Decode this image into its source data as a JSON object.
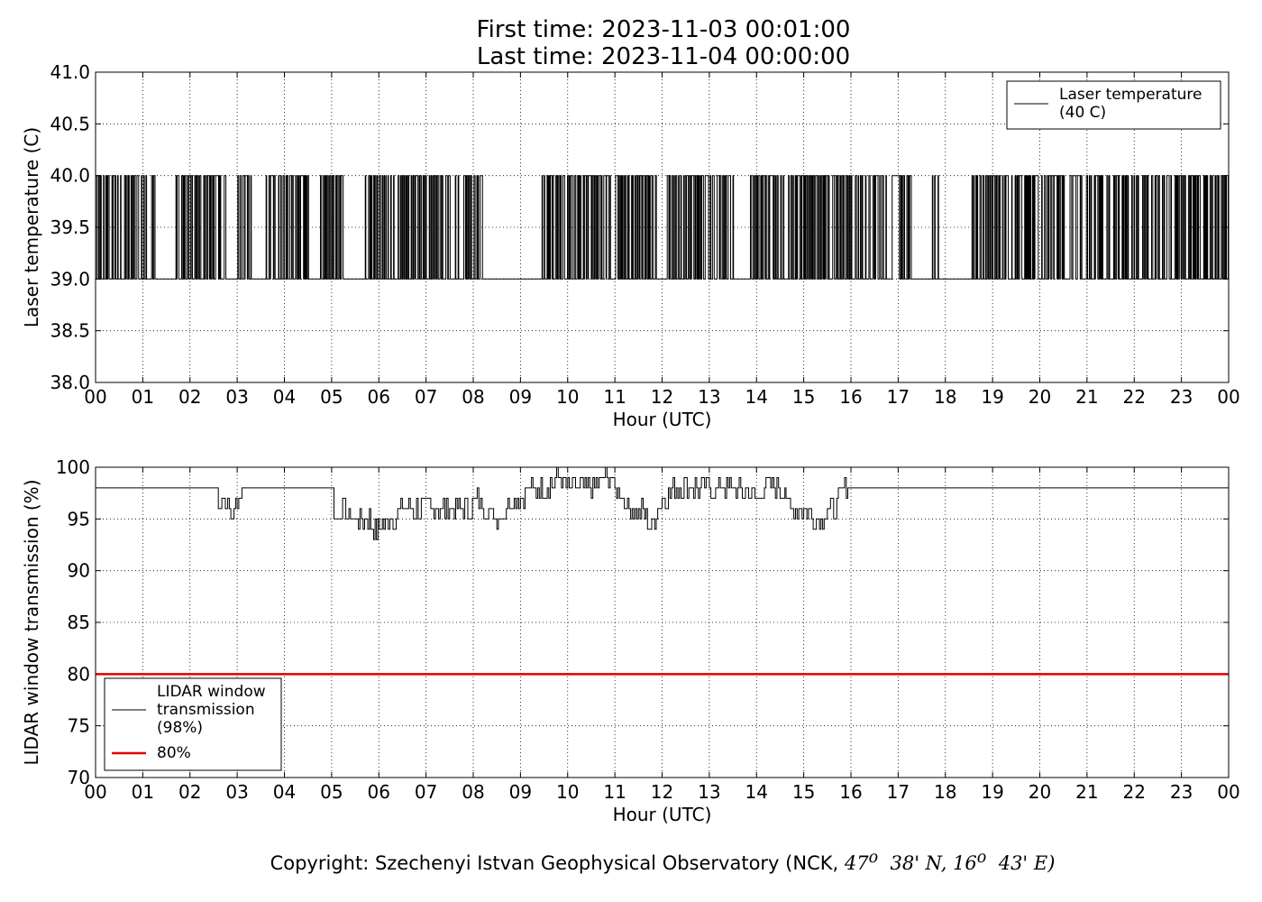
{
  "header": {
    "first_time": "First time: 2023-11-03 00:01:00",
    "last_time": "Last time: 2023-11-04 00:00:00"
  },
  "footer": {
    "copyright_prefix": "Copyright: Szechenyi Istvan Geophysical Observatory (NCK, ",
    "lat_deg": "47",
    "lat_min": "38' N, ",
    "lon_deg": "16",
    "lon_min": "43' E)",
    "degree_symbol": "o"
  },
  "chart_data": [
    {
      "type": "line",
      "xlabel": "Hour (UTC)",
      "ylabel": "Laser temperature (C)",
      "x_ticks": [
        "00",
        "01",
        "02",
        "03",
        "04",
        "05",
        "06",
        "07",
        "08",
        "09",
        "10",
        "11",
        "12",
        "13",
        "14",
        "15",
        "16",
        "17",
        "18",
        "19",
        "20",
        "21",
        "22",
        "23",
        "00"
      ],
      "xlim": [
        0,
        24
      ],
      "ylim": [
        38.0,
        41.0
      ],
      "y_ticks": [
        "38.0",
        "38.5",
        "39.0",
        "39.5",
        "40.0",
        "40.5",
        "41.0"
      ],
      "grid": true,
      "legend_position": "upper-right",
      "series": [
        {
          "name": "Laser temperature\n(40 C)",
          "color": "#000000",
          "note_levels": [
            39.0,
            40.0
          ],
          "dense_intervals_hours": [
            [
              0.0,
              1.25
            ],
            [
              1.7,
              2.75
            ],
            [
              3.0,
              3.3
            ],
            [
              3.55,
              4.5
            ],
            [
              4.75,
              5.25
            ],
            [
              5.7,
              8.2
            ],
            [
              9.45,
              11.9
            ],
            [
              12.1,
              13.55
            ],
            [
              13.85,
              17.3
            ],
            [
              17.7,
              17.9
            ],
            [
              18.5,
              24.0
            ]
          ],
          "flat_at_39_hours": [
            [
              8.2,
              9.45
            ],
            [
              17.3,
              17.7
            ],
            [
              17.9,
              18.5
            ]
          ],
          "flat_at_40_hours": [
            [
              13.0,
              13.3
            ]
          ]
        }
      ]
    },
    {
      "type": "line",
      "xlabel": "Hour (UTC)",
      "ylabel": "LIDAR window transmission (%)",
      "x_ticks": [
        "00",
        "01",
        "02",
        "03",
        "04",
        "05",
        "06",
        "07",
        "08",
        "09",
        "10",
        "11",
        "12",
        "13",
        "14",
        "15",
        "16",
        "17",
        "18",
        "19",
        "20",
        "21",
        "22",
        "23",
        "00"
      ],
      "xlim": [
        0,
        24
      ],
      "ylim": [
        70,
        100
      ],
      "y_ticks": [
        "70",
        "75",
        "80",
        "85",
        "90",
        "95",
        "100"
      ],
      "grid": true,
      "legend_position": "lower-left",
      "series": [
        {
          "name": "LIDAR window\ntransmission\n(98%)",
          "color": "#000000",
          "x": [
            0.0,
            2.55,
            2.6,
            2.75,
            2.8,
            2.9,
            3.0,
            3.1,
            4.7,
            4.75,
            5.0,
            5.05,
            5.1,
            5.2,
            5.5,
            5.8,
            5.95,
            6.2,
            6.5,
            7.0,
            7.5,
            7.95,
            8.05,
            8.5,
            8.9,
            9.0,
            9.2,
            9.5,
            9.8,
            10.0,
            10.5,
            10.9,
            11.0,
            11.5,
            11.6,
            11.75,
            12.0,
            12.3,
            12.5,
            13.0,
            13.5,
            14.0,
            14.2,
            14.6,
            14.65,
            15.0,
            15.3,
            15.6,
            15.9,
            16.0,
            24.0
          ],
          "values": [
            98,
            98,
            97,
            97,
            96,
            95,
            97,
            98,
            98,
            98,
            98,
            96,
            95,
            96,
            95,
            95,
            94,
            95,
            96,
            96,
            96,
            96,
            97,
            95,
            97,
            97,
            98,
            98,
            99,
            98,
            98,
            99,
            98,
            95,
            96,
            94,
            97,
            98,
            98,
            98,
            98,
            97,
            98,
            98,
            96,
            96,
            95,
            96,
            98,
            98,
            98
          ]
        },
        {
          "name": "80%",
          "color": "#e00000",
          "x": [
            0,
            24
          ],
          "values": [
            80,
            80
          ]
        }
      ]
    }
  ]
}
